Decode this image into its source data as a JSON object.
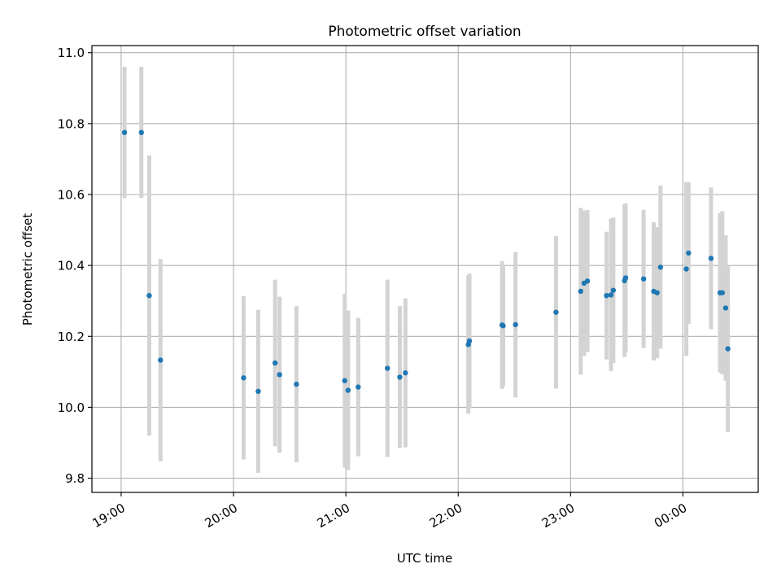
{
  "chart_data": {
    "type": "scatter",
    "title": "Photometric offset variation",
    "xlabel": "UTC time",
    "ylabel": "Photometric offset",
    "x_tick_labels": [
      "19:00",
      "20:00",
      "21:00",
      "22:00",
      "23:00",
      "00:00"
    ],
    "x_ticks_hours": [
      19,
      20,
      21,
      22,
      23,
      24
    ],
    "xlim_hours": [
      18.74,
      24.67
    ],
    "ylim": [
      9.76,
      11.02
    ],
    "y_ticks": [
      9.8,
      10.0,
      10.2,
      10.4,
      10.6,
      10.8,
      11.0
    ],
    "y_tick_labels": [
      "9.8",
      "10.0",
      "10.2",
      "10.4",
      "10.6",
      "10.8",
      "11.0"
    ],
    "grid": true,
    "marker_color": "#1f77b4",
    "errorbar_color": "#d3d3d3",
    "series": [
      {
        "x": [
          19.03,
          19.18,
          19.25,
          19.35,
          20.09,
          20.22,
          20.37,
          20.41,
          20.56,
          20.99,
          21.02,
          21.11,
          21.37,
          21.48,
          21.53,
          22.09,
          22.1,
          22.39,
          22.4,
          22.51,
          22.87,
          23.09,
          23.12,
          23.15,
          23.32,
          23.36,
          23.38,
          23.48,
          23.49,
          23.65,
          23.74,
          23.77,
          23.8,
          24.03,
          24.05,
          24.25,
          24.33,
          24.35,
          24.38,
          24.4
        ],
        "y": [
          10.775,
          10.775,
          10.315,
          10.133,
          10.083,
          10.045,
          10.125,
          10.092,
          10.065,
          10.075,
          10.048,
          10.057,
          10.11,
          10.085,
          10.097,
          10.177,
          10.187,
          10.232,
          10.23,
          10.233,
          10.268,
          10.327,
          10.35,
          10.356,
          10.315,
          10.317,
          10.33,
          10.357,
          10.365,
          10.362,
          10.327,
          10.323,
          10.395,
          10.39,
          10.435,
          10.42,
          10.323,
          10.323,
          10.28,
          10.165
        ],
        "yerr": [
          0.185,
          0.185,
          0.395,
          0.285,
          0.23,
          0.23,
          0.235,
          0.22,
          0.22,
          0.245,
          0.225,
          0.195,
          0.25,
          0.2,
          0.21,
          0.195,
          0.19,
          0.18,
          0.17,
          0.205,
          0.215,
          0.235,
          0.205,
          0.2,
          0.18,
          0.215,
          0.205,
          0.215,
          0.21,
          0.195,
          0.195,
          0.185,
          0.23,
          0.245,
          0.2,
          0.2,
          0.225,
          0.23,
          0.205,
          0.235
        ]
      }
    ]
  }
}
